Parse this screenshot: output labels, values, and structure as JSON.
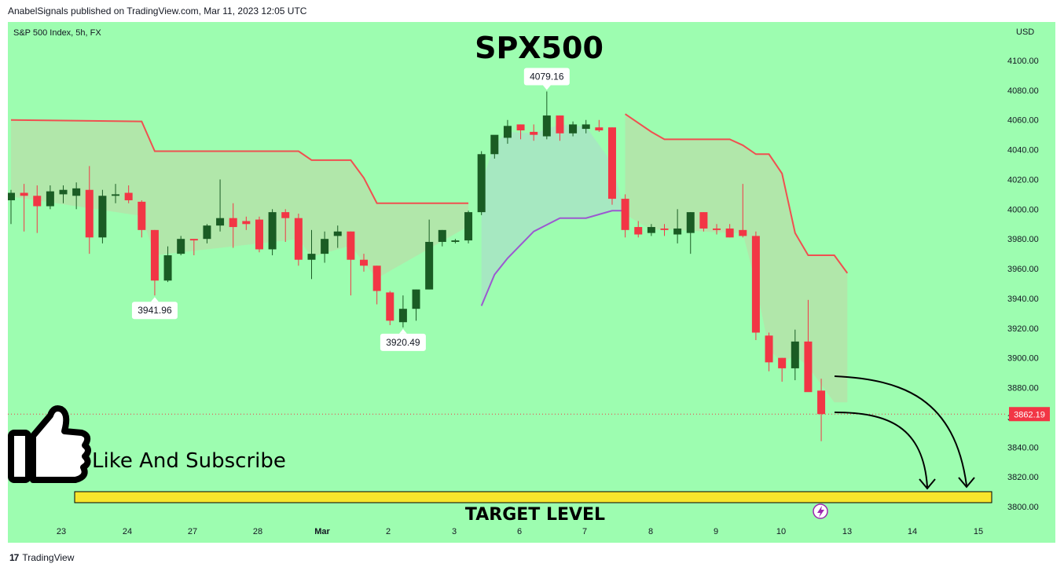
{
  "header": {
    "publisher": "AnabelSignals published on TradingView.com, Mar 11, 2023 12:05 UTC"
  },
  "chart_data": {
    "type": "candlestick",
    "symbol_info": "S&P 500 Index, 5h, FX",
    "title": "SPX500",
    "currency": "USD",
    "ylim": [
      3790,
      4120
    ],
    "y_ticks": [
      "4100.00",
      "4080.00",
      "4060.00",
      "4040.00",
      "4020.00",
      "4000.00",
      "3980.00",
      "3960.00",
      "3940.00",
      "3920.00",
      "3900.00",
      "3880.00",
      "3860.00",
      "3840.00",
      "3820.00",
      "3800.00"
    ],
    "x_ticks": [
      "23",
      "24",
      "27",
      "28",
      "Mar",
      "2",
      "3",
      "6",
      "7",
      "8",
      "9",
      "10",
      "13",
      "14",
      "15"
    ],
    "candles": [
      {
        "o": 4006,
        "h": 4013,
        "l": 3990,
        "c": 4011
      },
      {
        "o": 4011,
        "h": 4017,
        "l": 3985,
        "c": 4009
      },
      {
        "o": 4009,
        "h": 4016,
        "l": 3984,
        "c": 4002
      },
      {
        "o": 4002,
        "h": 4016,
        "l": 4000,
        "c": 4012
      },
      {
        "o": 4010,
        "h": 4016,
        "l": 4004,
        "c": 4013
      },
      {
        "o": 4009,
        "h": 4018,
        "l": 4000,
        "c": 4014
      },
      {
        "o": 4013,
        "h": 4029,
        "l": 3970,
        "c": 3981
      },
      {
        "o": 3981,
        "h": 4013,
        "l": 3977,
        "c": 4009
      },
      {
        "o": 4009,
        "h": 4017,
        "l": 4004,
        "c": 4010
      },
      {
        "o": 4011,
        "h": 4016,
        "l": 4004,
        "c": 4006
      },
      {
        "o": 4005,
        "h": 4006,
        "l": 3981,
        "c": 3986
      },
      {
        "o": 3986,
        "h": 3986,
        "l": 3941.96,
        "c": 3952
      },
      {
        "o": 3952,
        "h": 3975,
        "l": 3951,
        "c": 3969
      },
      {
        "o": 3970,
        "h": 3982,
        "l": 3969,
        "c": 3980
      },
      {
        "o": 3980,
        "h": 3980,
        "l": 3969,
        "c": 3979
      },
      {
        "o": 3980,
        "h": 3990,
        "l": 3977,
        "c": 3989
      },
      {
        "o": 3989,
        "h": 4020,
        "l": 3985,
        "c": 3994
      },
      {
        "o": 3994,
        "h": 4004,
        "l": 3974,
        "c": 3988
      },
      {
        "o": 3992,
        "h": 3995,
        "l": 3986,
        "c": 3990
      },
      {
        "o": 3993,
        "h": 3995,
        "l": 3971,
        "c": 3973
      },
      {
        "o": 3973,
        "h": 4000,
        "l": 3969,
        "c": 3998
      },
      {
        "o": 3998,
        "h": 4000,
        "l": 3978,
        "c": 3994
      },
      {
        "o": 3994,
        "h": 3997,
        "l": 3962,
        "c": 3966
      },
      {
        "o": 3966,
        "h": 3986,
        "l": 3953,
        "c": 3970
      },
      {
        "o": 3970,
        "h": 3985,
        "l": 3964,
        "c": 3980
      },
      {
        "o": 3982,
        "h": 3989,
        "l": 3974,
        "c": 3985
      },
      {
        "o": 3985,
        "h": 3985,
        "l": 3942,
        "c": 3966
      },
      {
        "o": 3966,
        "h": 3970,
        "l": 3958,
        "c": 3962
      },
      {
        "o": 3962,
        "h": 3962,
        "l": 3936,
        "c": 3945
      },
      {
        "o": 3944,
        "h": 3945,
        "l": 3922,
        "c": 3925
      },
      {
        "o": 3924,
        "h": 3942,
        "l": 3920.49,
        "c": 3933
      },
      {
        "o": 3933,
        "h": 3946,
        "l": 3925,
        "c": 3946
      },
      {
        "o": 3946,
        "h": 3993,
        "l": 3946,
        "c": 3978
      },
      {
        "o": 3978,
        "h": 3986,
        "l": 3975,
        "c": 3986
      },
      {
        "o": 3978,
        "h": 3980,
        "l": 3977,
        "c": 3979
      },
      {
        "o": 3979,
        "h": 3999,
        "l": 3977,
        "c": 3998
      },
      {
        "o": 3998,
        "h": 4039,
        "l": 3996,
        "c": 4037
      },
      {
        "o": 4037,
        "h": 4049,
        "l": 4034,
        "c": 4050
      },
      {
        "o": 4048,
        "h": 4060,
        "l": 4044,
        "c": 4056
      },
      {
        "o": 4057,
        "h": 4057,
        "l": 4047,
        "c": 4053
      },
      {
        "o": 4052,
        "h": 4057,
        "l": 4046,
        "c": 4050
      },
      {
        "o": 4049,
        "h": 4079.16,
        "l": 4047,
        "c": 4063
      },
      {
        "o": 4063,
        "h": 4063,
        "l": 4046,
        "c": 4051
      },
      {
        "o": 4051,
        "h": 4059,
        "l": 4049,
        "c": 4057
      },
      {
        "o": 4054,
        "h": 4060,
        "l": 4051,
        "c": 4057
      },
      {
        "o": 4055,
        "h": 4060,
        "l": 4052,
        "c": 4053
      },
      {
        "o": 4055,
        "h": 4055,
        "l": 4003,
        "c": 4007
      },
      {
        "o": 4007,
        "h": 4010,
        "l": 3981,
        "c": 3986
      },
      {
        "o": 3988,
        "h": 3992,
        "l": 3981,
        "c": 3983
      },
      {
        "o": 3984,
        "h": 3990,
        "l": 3982,
        "c": 3988
      },
      {
        "o": 3987,
        "h": 3990,
        "l": 3982,
        "c": 3986
      },
      {
        "o": 3983,
        "h": 4000,
        "l": 3977,
        "c": 3987
      },
      {
        "o": 3984,
        "h": 3998,
        "l": 3970,
        "c": 3998
      },
      {
        "o": 3998,
        "h": 3998,
        "l": 3985,
        "c": 3987
      },
      {
        "o": 3987,
        "h": 3990,
        "l": 3983,
        "c": 3986
      },
      {
        "o": 3987,
        "h": 3990,
        "l": 3981,
        "c": 3981
      },
      {
        "o": 3986,
        "h": 4017,
        "l": 3981,
        "c": 3982
      },
      {
        "o": 3982,
        "h": 3985,
        "l": 3912,
        "c": 3917
      },
      {
        "o": 3915,
        "h": 3917,
        "l": 3891,
        "c": 3897
      },
      {
        "o": 3900,
        "h": 3900,
        "l": 3884,
        "c": 3893
      },
      {
        "o": 3893,
        "h": 3919,
        "l": 3885,
        "c": 3911
      },
      {
        "o": 3911,
        "h": 3939,
        "l": 3878,
        "c": 3877
      },
      {
        "o": 3878,
        "h": 3886,
        "l": 3844,
        "c": 3862.19
      }
    ],
    "supertrend_upper": [
      {
        "x": 0,
        "y": 4060
      },
      {
        "x": 10,
        "y": 4059
      },
      {
        "x": 11,
        "y": 4039
      },
      {
        "x": 22,
        "y": 4039
      },
      {
        "x": 23,
        "y": 4033
      },
      {
        "x": 26,
        "y": 4033
      },
      {
        "x": 27,
        "y": 4021
      },
      {
        "x": 28,
        "y": 4004
      },
      {
        "x": 35,
        "y": 4004
      }
    ],
    "supertrend_lower": [
      {
        "x": 36,
        "y": 3935
      },
      {
        "x": 37,
        "y": 3956
      },
      {
        "x": 38,
        "y": 3967
      },
      {
        "x": 40,
        "y": 3985
      },
      {
        "x": 42,
        "y": 3994
      },
      {
        "x": 44,
        "y": 3994
      },
      {
        "x": 46,
        "y": 3999
      },
      {
        "x": 47,
        "y": 3999
      }
    ],
    "supertrend_upper2": [
      {
        "x": 47,
        "y": 4064
      },
      {
        "x": 49,
        "y": 4052
      },
      {
        "x": 50,
        "y": 4047
      },
      {
        "x": 55,
        "y": 4047
      },
      {
        "x": 56,
        "y": 4043
      },
      {
        "x": 57,
        "y": 4037
      },
      {
        "x": 58,
        "y": 4037
      },
      {
        "x": 59,
        "y": 4024
      },
      {
        "x": 60,
        "y": 3984
      },
      {
        "x": 61,
        "y": 3969
      },
      {
        "x": 63,
        "y": 3969
      },
      {
        "x": 64,
        "y": 3957
      }
    ],
    "price_labels": [
      {
        "text": "4079.16",
        "candle": 41,
        "value": 4079.16,
        "pos": "above"
      },
      {
        "text": "3941.96",
        "candle": 11,
        "value": 3941.96,
        "pos": "below"
      },
      {
        "text": "3920.49",
        "candle": 30,
        "value": 3920.49,
        "pos": "below"
      }
    ],
    "last_price": "3862.19",
    "target_level": 3806,
    "target_label": "TARGET LEVEL",
    "overlay_text": "Like And Subscribe"
  },
  "colors": {
    "background": "#9dfdb0",
    "up_candle": "#1a5c24",
    "down_candle": "#f23645",
    "supertrend_down": "#f05050",
    "supertrend_up": "#9b59d0",
    "fill_down": "#b5e3a9",
    "fill_up": "#a8e4c4",
    "target_bar": "#f7e52c"
  },
  "footer": {
    "brand": "TradingView"
  }
}
